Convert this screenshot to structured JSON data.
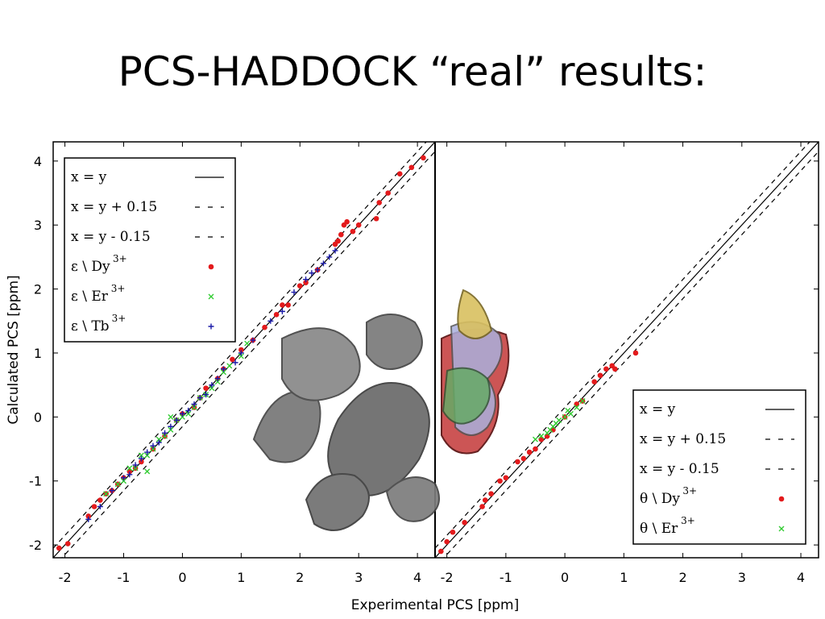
{
  "slide": {
    "title": "PCS-HADDOCK “real” results:"
  },
  "colors": {
    "dy": "#e31a1c",
    "er": "#33cc33",
    "tb": "#1a1aa8",
    "line": "#000000",
    "protein": "#6e6e6e"
  },
  "chart_data": {
    "type": "scatter",
    "xlabel": "Experimental PCS [ppm]",
    "ylabel": "Calculated PCS [ppm]",
    "xlim": [
      -2.2,
      4.3
    ],
    "ylim": [
      -2.2,
      4.3
    ],
    "panels": [
      {
        "legend_position": "top-left",
        "xticks": [
          "-2",
          "-1",
          "0",
          "1",
          "2",
          "3",
          "4"
        ],
        "yticks": [
          "-2",
          "-1",
          "0",
          "1",
          "2",
          "3",
          "4"
        ],
        "reference_lines": [
          {
            "label": "x = y",
            "offset": 0,
            "dash": "solid"
          },
          {
            "label": "x = y + 0.15",
            "offset": 0.15,
            "dash": "dashed"
          },
          {
            "label": "x = y  - 0.15",
            "offset": -0.15,
            "dash": "dashed"
          }
        ],
        "series": [
          {
            "name": "ε \\ Dy",
            "sup": "3+",
            "color": "dy",
            "marker": "dot",
            "points": [
              [
                -2.1,
                -2.05
              ],
              [
                -1.95,
                -1.98
              ],
              [
                -1.6,
                -1.55
              ],
              [
                -1.5,
                -1.4
              ],
              [
                -1.4,
                -1.3
              ],
              [
                -1.3,
                -1.2
              ],
              [
                -1.2,
                -1.15
              ],
              [
                -1.1,
                -1.05
              ],
              [
                -1.0,
                -0.95
              ],
              [
                -0.9,
                -0.85
              ],
              [
                -0.8,
                -0.8
              ],
              [
                -0.7,
                -0.7
              ],
              [
                -0.5,
                -0.5
              ],
              [
                -0.3,
                -0.3
              ],
              [
                -0.1,
                -0.05
              ],
              [
                0.0,
                0.05
              ],
              [
                0.2,
                0.15
              ],
              [
                0.3,
                0.3
              ],
              [
                0.4,
                0.45
              ],
              [
                0.6,
                0.6
              ],
              [
                0.7,
                0.75
              ],
              [
                0.85,
                0.9
              ],
              [
                1.0,
                1.05
              ],
              [
                1.2,
                1.2
              ],
              [
                1.4,
                1.4
              ],
              [
                1.6,
                1.6
              ],
              [
                1.7,
                1.75
              ],
              [
                1.8,
                1.75
              ],
              [
                2.0,
                2.05
              ],
              [
                2.1,
                2.1
              ],
              [
                2.3,
                2.3
              ],
              [
                2.6,
                2.7
              ],
              [
                2.65,
                2.75
              ],
              [
                2.7,
                2.85
              ],
              [
                2.75,
                3.0
              ],
              [
                2.8,
                3.05
              ],
              [
                2.9,
                2.9
              ],
              [
                3.0,
                3.0
              ],
              [
                3.3,
                3.1
              ],
              [
                3.35,
                3.35
              ],
              [
                3.5,
                3.5
              ],
              [
                3.7,
                3.8
              ],
              [
                3.9,
                3.9
              ],
              [
                4.1,
                4.05
              ]
            ]
          },
          {
            "name": "ε \\ Er",
            "sup": "3+",
            "color": "er",
            "marker": "x",
            "points": [
              [
                -1.3,
                -1.2
              ],
              [
                -1.1,
                -1.05
              ],
              [
                -1.0,
                -1.0
              ],
              [
                -0.9,
                -0.8
              ],
              [
                -0.8,
                -0.8
              ],
              [
                -0.7,
                -0.6
              ],
              [
                -0.6,
                -0.6
              ],
              [
                -0.5,
                -0.5
              ],
              [
                -0.4,
                -0.35
              ],
              [
                -0.3,
                -0.3
              ],
              [
                -0.2,
                -0.2
              ],
              [
                -0.1,
                -0.05
              ],
              [
                0.0,
                0.0
              ],
              [
                0.1,
                0.05
              ],
              [
                0.2,
                0.15
              ],
              [
                0.3,
                0.3
              ],
              [
                0.4,
                0.35
              ],
              [
                0.5,
                0.45
              ],
              [
                0.6,
                0.55
              ],
              [
                0.7,
                0.7
              ],
              [
                0.8,
                0.8
              ],
              [
                1.0,
                0.95
              ],
              [
                1.1,
                1.15
              ],
              [
                -0.6,
                -0.85
              ],
              [
                -0.2,
                0.0
              ]
            ]
          },
          {
            "name": "ε \\ Tb",
            "sup": "3+",
            "color": "tb",
            "marker": "plus",
            "points": [
              [
                -1.6,
                -1.6
              ],
              [
                -1.4,
                -1.4
              ],
              [
                -1.2,
                -1.15
              ],
              [
                -1.0,
                -0.95
              ],
              [
                -0.9,
                -0.9
              ],
              [
                -0.8,
                -0.75
              ],
              [
                -0.7,
                -0.65
              ],
              [
                -0.6,
                -0.55
              ],
              [
                -0.5,
                -0.45
              ],
              [
                -0.4,
                -0.4
              ],
              [
                -0.3,
                -0.25
              ],
              [
                -0.2,
                -0.15
              ],
              [
                -0.1,
                -0.05
              ],
              [
                0.0,
                0.05
              ],
              [
                0.1,
                0.1
              ],
              [
                0.2,
                0.2
              ],
              [
                0.3,
                0.3
              ],
              [
                0.4,
                0.35
              ],
              [
                0.5,
                0.5
              ],
              [
                0.6,
                0.6
              ],
              [
                0.7,
                0.75
              ],
              [
                0.9,
                0.85
              ],
              [
                1.0,
                1.0
              ],
              [
                1.2,
                1.2
              ],
              [
                1.5,
                1.5
              ],
              [
                1.7,
                1.65
              ],
              [
                1.9,
                1.95
              ],
              [
                2.1,
                2.15
              ],
              [
                2.2,
                2.25
              ],
              [
                2.3,
                2.3
              ],
              [
                2.4,
                2.4
              ],
              [
                2.5,
                2.5
              ],
              [
                2.6,
                2.6
              ]
            ]
          }
        ]
      },
      {
        "legend_position": "bottom-right",
        "xticks": [
          "-2",
          "-1",
          "0",
          "1",
          "2",
          "3",
          "4"
        ],
        "yticks": [],
        "reference_lines": [
          {
            "label": "x = y",
            "offset": 0,
            "dash": "solid"
          },
          {
            "label": "x = y + 0.15",
            "offset": 0.15,
            "dash": "dashed"
          },
          {
            "label": "x = y  - 0.15",
            "offset": -0.15,
            "dash": "dashed"
          }
        ],
        "series": [
          {
            "name": "θ \\ Dy",
            "sup": "3+",
            "color": "dy",
            "marker": "dot",
            "points": [
              [
                -2.1,
                -2.1
              ],
              [
                -2.0,
                -1.95
              ],
              [
                -1.9,
                -1.8
              ],
              [
                -1.7,
                -1.65
              ],
              [
                -1.4,
                -1.4
              ],
              [
                -1.35,
                -1.3
              ],
              [
                -1.25,
                -1.2
              ],
              [
                -1.1,
                -1.0
              ],
              [
                -1.0,
                -0.95
              ],
              [
                -0.8,
                -0.7
              ],
              [
                -0.7,
                -0.65
              ],
              [
                -0.6,
                -0.55
              ],
              [
                -0.5,
                -0.5
              ],
              [
                -0.4,
                -0.35
              ],
              [
                -0.3,
                -0.3
              ],
              [
                -0.2,
                -0.2
              ],
              [
                0.0,
                0.0
              ],
              [
                0.2,
                0.2
              ],
              [
                0.3,
                0.25
              ],
              [
                0.5,
                0.55
              ],
              [
                0.6,
                0.65
              ],
              [
                0.7,
                0.75
              ],
              [
                0.8,
                0.8
              ],
              [
                0.85,
                0.75
              ],
              [
                1.2,
                1.0
              ]
            ]
          },
          {
            "name": "θ \\ Er",
            "sup": "3+",
            "color": "er",
            "marker": "x",
            "points": [
              [
                -0.5,
                -0.35
              ],
              [
                -0.4,
                -0.3
              ],
              [
                -0.3,
                -0.25
              ],
              [
                -0.2,
                -0.15
              ],
              [
                -0.1,
                -0.05
              ],
              [
                0.0,
                0.0
              ],
              [
                0.1,
                0.05
              ],
              [
                0.2,
                0.15
              ],
              [
                0.3,
                0.25
              ],
              [
                -0.25,
                -0.2
              ],
              [
                0.05,
                0.1
              ],
              [
                -0.15,
                -0.1
              ]
            ]
          }
        ]
      }
    ]
  }
}
